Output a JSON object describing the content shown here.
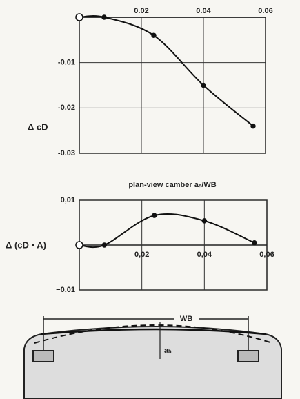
{
  "chart_data": [
    {
      "type": "line",
      "xlabel": "plan-view camber aₕ/WB",
      "ylabel": "Δ cD",
      "x": [
        0,
        0.008,
        0.024,
        0.04,
        0.056
      ],
      "values": [
        0,
        0,
        -0.004,
        -0.015,
        -0.024
      ],
      "xlim": [
        0,
        0.06
      ],
      "ylim": [
        -0.03,
        0
      ],
      "xticks": [
        0.02,
        0.04,
        0.06
      ],
      "yticks": [
        -0.03,
        -0.02,
        -0.01
      ],
      "grid": true,
      "color": "#111111"
    },
    {
      "type": "line",
      "ylabel": "Δ (cD • A)",
      "x": [
        0,
        0.008,
        0.024,
        0.04,
        0.056
      ],
      "values": [
        0,
        0,
        0.0066,
        0.0054,
        0.0005
      ],
      "xlim": [
        0,
        0.06
      ],
      "ylim": [
        -0.01,
        0.01
      ],
      "xticks": [
        {
          "value": 0.02,
          "label": "0,02"
        },
        {
          "value": 0.04,
          "label": "0,04"
        },
        {
          "value": 0.06,
          "label": "0,06"
        }
      ],
      "yticks": [
        {
          "value": -0.01,
          "label": "−0,01"
        },
        {
          "value": 0.01,
          "label": "0,01"
        }
      ],
      "grid": true,
      "color": "#111111"
    }
  ],
  "diagram": {
    "wb_label": "WB",
    "height_label": "aₕ"
  }
}
